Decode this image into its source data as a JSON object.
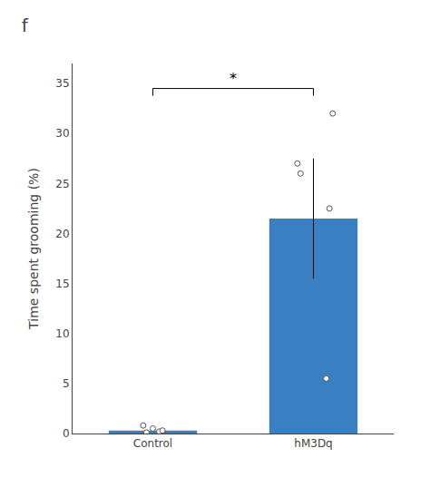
{
  "chart_data": {
    "type": "bar",
    "title": "f",
    "ylabel": "Time spent grooming (%)",
    "categories": [
      "Control",
      "hM3Dq"
    ],
    "values": [
      0.3,
      21.5
    ],
    "color": "#3a7fc1",
    "errors": [
      null,
      6.0
    ],
    "points": [
      [
        0.1,
        0.2,
        0.5,
        0.8,
        0.3
      ],
      [
        5.5,
        22.5,
        26.0,
        32.0,
        27.0
      ]
    ],
    "significance": {
      "text": "*",
      "y": 34.5
    },
    "ylim": [
      0,
      37
    ],
    "yticks": [
      0,
      5,
      10,
      15,
      20,
      25,
      30,
      35
    ],
    "grid": false
  }
}
